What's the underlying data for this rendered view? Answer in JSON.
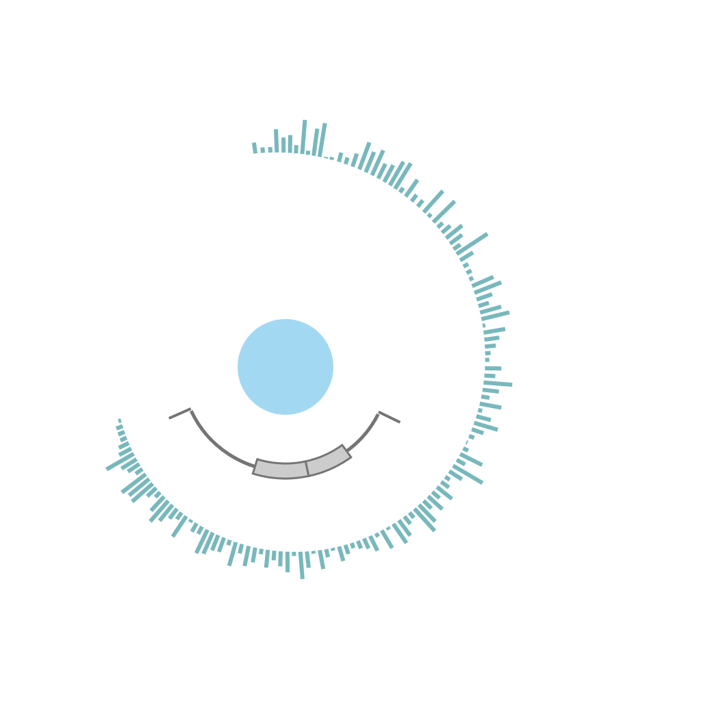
{
  "colors": {
    "background": "#ffffff",
    "center_disc": "#a3d8f2",
    "bars": "#78b8bc",
    "track_line": "#757575",
    "segment_fill": "#cccccc",
    "segment_stroke": "#757575"
  },
  "center_disc": {
    "label": ""
  },
  "track": {
    "label": "",
    "start_angle_deg": 117,
    "end_angle_deg": 245,
    "end_caps": true
  },
  "segments": [
    {
      "label": "",
      "start_angle_deg": 144,
      "end_angle_deg": 168
    },
    {
      "label": "",
      "start_angle_deg": 168,
      "end_angle_deg": 197
    }
  ],
  "bar_track": {
    "label": "",
    "start_angle_deg": 246,
    "end_angle_deg": 353,
    "bars": [
      [
        -8.0,
        16
      ],
      [
        -6.0,
        8
      ],
      [
        -4.0,
        8
      ],
      [
        -2.3,
        34
      ],
      [
        -0.5,
        22
      ],
      [
        1.2,
        26
      ],
      [
        2.8,
        12
      ],
      [
        4.5,
        50
      ],
      [
        6.0,
        6
      ],
      [
        7.6,
        40
      ],
      [
        9.2,
        50
      ],
      [
        11.0,
        2
      ],
      [
        12.5,
        4
      ],
      [
        14.6,
        14
      ],
      [
        16.5,
        10
      ],
      [
        18.5,
        20
      ],
      [
        20.5,
        42
      ],
      [
        22.4,
        32
      ],
      [
        24.3,
        40
      ],
      [
        26.2,
        24
      ],
      [
        28.1,
        28
      ],
      [
        29.9,
        40
      ],
      [
        31.6,
        44
      ],
      [
        33.3,
        8
      ],
      [
        35.2,
        30
      ],
      [
        37.3,
        12
      ],
      [
        39.5,
        12
      ],
      [
        41.8,
        42
      ],
      [
        43.6,
        6
      ],
      [
        45.6,
        44
      ],
      [
        47.5,
        10
      ],
      [
        49.4,
        16
      ],
      [
        51.3,
        30
      ],
      [
        53.2,
        22
      ],
      [
        55.0,
        12
      ],
      [
        56.6,
        54
      ],
      [
        58.6,
        22
      ],
      [
        60.6,
        8
      ],
      [
        62.6,
        8
      ],
      [
        64.6,
        6
      ],
      [
        66.6,
        34
      ],
      [
        68.6,
        42
      ],
      [
        70.6,
        24
      ],
      [
        72.5,
        16
      ],
      [
        74.4,
        32
      ],
      [
        76.3,
        42
      ],
      [
        78.2,
        4
      ],
      [
        80.2,
        32
      ],
      [
        82.2,
        22
      ],
      [
        84.2,
        16
      ],
      [
        86.1,
        8
      ],
      [
        88.0,
        6
      ],
      [
        90.4,
        24
      ],
      [
        92.5,
        16
      ],
      [
        94.5,
        42
      ],
      [
        96.6,
        24
      ],
      [
        98.6,
        12
      ],
      [
        100.7,
        32
      ],
      [
        102.6,
        6
      ],
      [
        104.5,
        22
      ],
      [
        106.5,
        36
      ],
      [
        108.5,
        18
      ],
      [
        110.6,
        8
      ],
      [
        112.6,
        2
      ],
      [
        114.6,
        8
      ],
      [
        116.5,
        36
      ],
      [
        118.5,
        14
      ],
      [
        120.5,
        50
      ],
      [
        122.5,
        22
      ],
      [
        124.5,
        8
      ],
      [
        126.4,
        14
      ],
      [
        128.4,
        28
      ],
      [
        130.4,
        14
      ],
      [
        132.2,
        28
      ],
      [
        134.1,
        16
      ],
      [
        135.9,
        34
      ],
      [
        137.7,
        44
      ],
      [
        139.6,
        10
      ],
      [
        141.5,
        14
      ],
      [
        143.5,
        28
      ],
      [
        145.5,
        34
      ],
      [
        147.5,
        4
      ],
      [
        149.5,
        30
      ],
      [
        151.4,
        6
      ],
      [
        153.4,
        24
      ],
      [
        155.4,
        16
      ],
      [
        157.4,
        12
      ],
      [
        159.4,
        8
      ],
      [
        161.4,
        14
      ],
      [
        163.4,
        22
      ],
      [
        165.4,
        4
      ],
      [
        167.4,
        12
      ],
      [
        169.4,
        28
      ],
      [
        171.4,
        4
      ],
      [
        173.4,
        24
      ],
      [
        175.4,
        40
      ],
      [
        177.4,
        6
      ],
      [
        179.4,
        30
      ],
      [
        181.5,
        22
      ],
      [
        183.5,
        14
      ],
      [
        185.5,
        26
      ],
      [
        187.5,
        8
      ],
      [
        189.5,
        22
      ],
      [
        191.6,
        30
      ],
      [
        193.8,
        14
      ],
      [
        195.8,
        36
      ],
      [
        197.8,
        8
      ],
      [
        199.8,
        22
      ],
      [
        201.8,
        24
      ],
      [
        203.7,
        34
      ],
      [
        205.6,
        38
      ],
      [
        207.6,
        12
      ],
      [
        209.6,
        14
      ],
      [
        211.6,
        4
      ],
      [
        213.6,
        36
      ],
      [
        215.5,
        12
      ],
      [
        217.4,
        18
      ],
      [
        219.3,
        30
      ],
      [
        221.2,
        40
      ],
      [
        223.1,
        28
      ],
      [
        225.0,
        10
      ],
      [
        226.9,
        18
      ],
      [
        228.7,
        40
      ],
      [
        230.6,
        38
      ],
      [
        232.5,
        44
      ],
      [
        234.5,
        12
      ],
      [
        236.4,
        20
      ],
      [
        238.2,
        26
      ],
      [
        240.2,
        46
      ],
      [
        242.1,
        20
      ],
      [
        244.1,
        16
      ],
      [
        246.0,
        10
      ],
      [
        248.0,
        10
      ],
      [
        250.0,
        10
      ],
      [
        252.0,
        4
      ]
    ]
  }
}
